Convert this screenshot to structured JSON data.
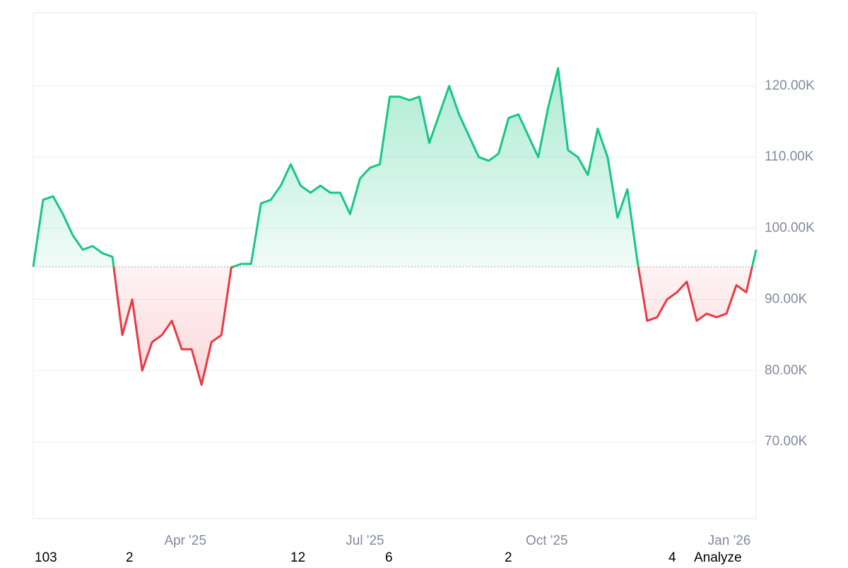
{
  "chart_data": {
    "type": "baseline-area",
    "values": [
      94600,
      104000,
      104500,
      102000,
      99000,
      97000,
      97500,
      96500,
      96000,
      85000,
      90000,
      80000,
      84000,
      85000,
      87000,
      83000,
      83000,
      78000,
      84000,
      85000,
      94500,
      95000,
      95000,
      103500,
      104000,
      106000,
      109000,
      106000,
      105000,
      106000,
      105000,
      105000,
      102000,
      107000,
      108500,
      109000,
      118500,
      118500,
      118000,
      118500,
      112000,
      116000,
      120000,
      116000,
      113000,
      110000,
      109500,
      110500,
      115500,
      116000,
      113000,
      110000,
      117000,
      122500,
      111000,
      110000,
      107500,
      114000,
      110000,
      101500,
      105500,
      95500,
      87000,
      87500,
      90000,
      91000,
      92500,
      87000,
      88000,
      87500,
      88000,
      92000,
      91000,
      97000
    ],
    "up_color": "#16c784",
    "down_color": "#ea3943",
    "xlim": [
      0,
      73
    ],
    "xticks": [
      {
        "value": 15.36,
        "label": "Apr '25"
      },
      {
        "value": 33.5,
        "label": "Jul '25"
      },
      {
        "value": 51.86,
        "label": "Oct '25"
      },
      {
        "value": 70.29,
        "label": "Jan '26"
      }
    ],
    "ylim": [
      59200,
      130300
    ],
    "yticks": [
      {
        "value": 70000,
        "label": "70.00K"
      },
      {
        "value": 80000,
        "label": "80.00K"
      },
      {
        "value": 90000,
        "label": "90.00K"
      },
      {
        "value": 100000,
        "label": "100.00K"
      },
      {
        "value": 110000,
        "label": "110.00K"
      },
      {
        "value": 120000,
        "label": "120.00K"
      }
    ],
    "grid": true
  },
  "footer": {
    "items": [
      "103",
      "2",
      "12",
      "6",
      "2",
      "4"
    ],
    "button": "Analyze"
  }
}
